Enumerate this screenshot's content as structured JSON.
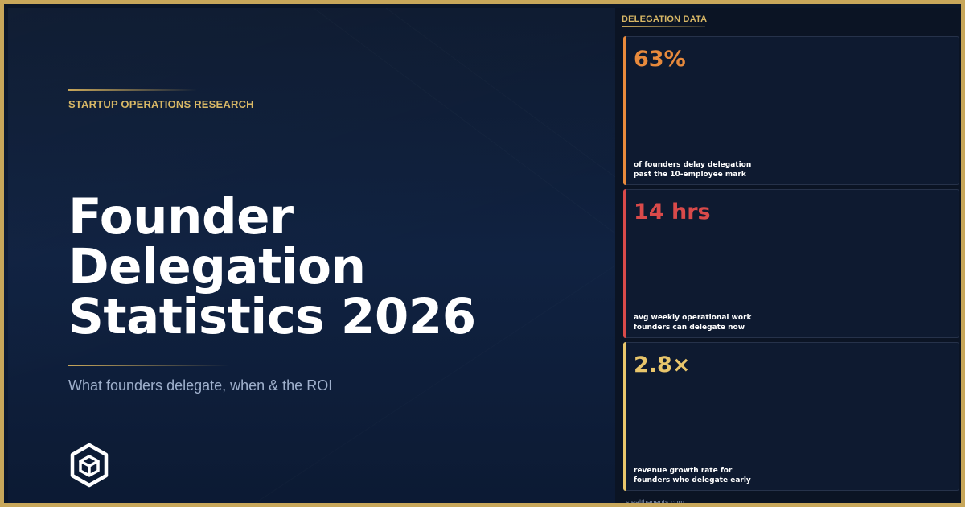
{
  "hero": {
    "eyebrow": "STARTUP OPERATIONS RESEARCH",
    "title_lines": [
      "Founder",
      "Delegation",
      "Statistics 2026"
    ],
    "subtitle": "What founders delegate, when & the ROI"
  },
  "panel": {
    "heading": "DELEGATION DATA",
    "cards": [
      {
        "value": "63%",
        "label_lines": [
          "of founders delay delegation",
          "past the 10-employee mark"
        ],
        "color": "#e88a3c"
      },
      {
        "value": "14 hrs",
        "label_lines": [
          "avg weekly operational work",
          "founders can delegate now"
        ],
        "color": "#d94a4a"
      },
      {
        "value": "2.8×",
        "label_lines": [
          "revenue growth rate for",
          "founders who delegate early"
        ],
        "color": "#e9c66b"
      }
    ],
    "footer": "stealthagents.com"
  },
  "colors": {
    "accent_gold": "#c8a75a",
    "background": "#0c1628"
  },
  "icons": {
    "logo": "hexagon-cube-logo-icon"
  }
}
